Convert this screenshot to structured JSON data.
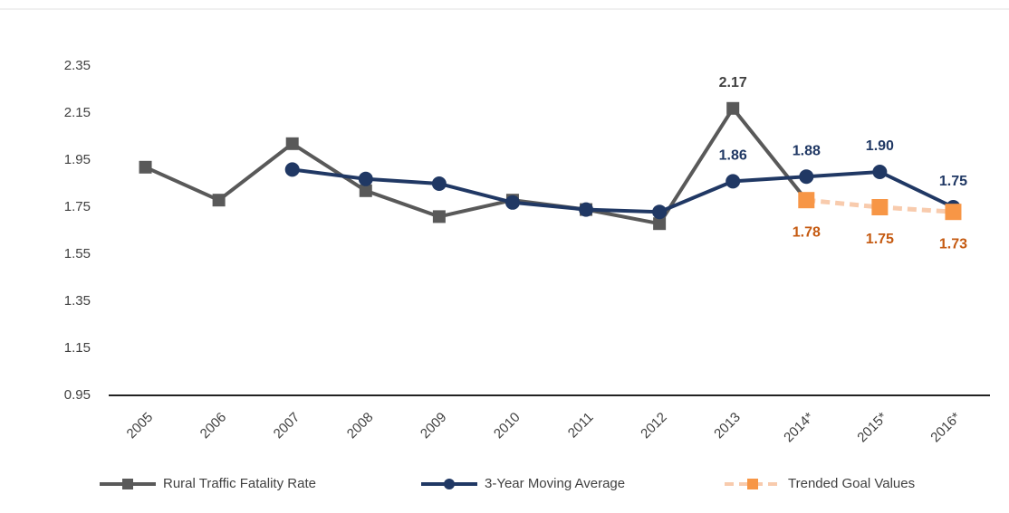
{
  "chart_data": {
    "type": "line",
    "categories": [
      "2005",
      "2006",
      "2007",
      "2008",
      "2009",
      "2010",
      "2011",
      "2012",
      "2013",
      "2014*",
      "2015*",
      "2016*"
    ],
    "series": [
      {
        "name": "Rural Traffic Fatality Rate",
        "color": "#595959",
        "marker": "square",
        "dashed": false,
        "label_color": "#404040",
        "label_side": "above",
        "values": [
          1.92,
          1.78,
          2.02,
          1.82,
          1.71,
          1.78,
          1.74,
          1.68,
          2.17,
          1.78,
          null,
          null
        ],
        "value_labels": [
          null,
          null,
          null,
          null,
          null,
          null,
          null,
          null,
          "2.17",
          null,
          null,
          null
        ]
      },
      {
        "name": "3-Year Moving Average",
        "color": "#203864",
        "marker": "circle",
        "dashed": false,
        "label_color": "#203864",
        "label_side": "above",
        "values": [
          null,
          null,
          1.91,
          1.87,
          1.85,
          1.77,
          1.74,
          1.73,
          1.86,
          1.88,
          1.9,
          1.75
        ],
        "value_labels": [
          null,
          null,
          null,
          null,
          null,
          null,
          null,
          null,
          "1.86",
          "1.88",
          "1.90",
          "1.75"
        ]
      },
      {
        "name": "Trended Goal Values",
        "color": "#f8cbad",
        "marker_color": "#f79646",
        "marker": "square",
        "dashed": true,
        "label_color": "#c55a11",
        "label_side": "below",
        "values": [
          null,
          null,
          null,
          null,
          null,
          null,
          null,
          null,
          null,
          1.78,
          1.75,
          1.73
        ],
        "value_labels": [
          null,
          null,
          null,
          null,
          null,
          null,
          null,
          null,
          null,
          "1.78",
          "1.75",
          "1.73"
        ]
      }
    ],
    "ylim": [
      0.95,
      2.35
    ],
    "yticks": [
      0.95,
      1.15,
      1.35,
      1.55,
      1.75,
      1.95,
      2.15,
      2.35
    ],
    "grid": false,
    "legend": "bottom"
  }
}
